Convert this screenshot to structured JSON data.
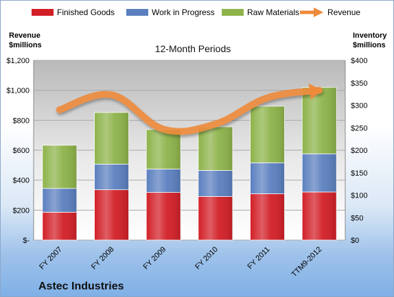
{
  "chart_data": {
    "type": "bar",
    "title": "12-Month Periods",
    "company": "Astec Industries",
    "categories": [
      "FY 2007",
      "FY 2008",
      "FY 2009",
      "FY 2010",
      "FY 2011",
      "TTM9-2012"
    ],
    "stacked": true,
    "series": [
      {
        "name": "Finished Goods",
        "axis": "right",
        "color": "#d21f27",
        "values": [
          62,
          112,
          106,
          97,
          103,
          107
        ]
      },
      {
        "name": "Work in Progress",
        "axis": "right",
        "color": "#5b7fbf",
        "values": [
          53,
          57,
          52,
          58,
          69,
          85
        ]
      },
      {
        "name": "Raw Materials",
        "axis": "right",
        "color": "#8db34a",
        "values": [
          96,
          115,
          88,
          97,
          126,
          148
        ]
      },
      {
        "name": "Revenue",
        "axis": "left",
        "type": "line",
        "color": "#ee8a3a",
        "values": [
          870,
          970,
          740,
          775,
          950,
          1000
        ]
      }
    ],
    "left_axis": {
      "label": "Revenue $millions",
      "ylim": [
        0,
        1200
      ],
      "ticks": [
        0,
        200,
        400,
        600,
        800,
        1000,
        1200
      ],
      "tick_labels": [
        "$-",
        "$200",
        "$400",
        "$600",
        "$800",
        "$1,000",
        "$1,200"
      ]
    },
    "right_axis": {
      "label": "Inventory $millions",
      "ylim": [
        0,
        400
      ],
      "ticks": [
        0,
        50,
        100,
        150,
        200,
        250,
        300,
        350,
        400
      ],
      "tick_labels": [
        "$0",
        "$50",
        "$100",
        "$150",
        "$200",
        "$250",
        "$300",
        "$350",
        "$400"
      ]
    },
    "legend_position": "top",
    "grid": true
  }
}
